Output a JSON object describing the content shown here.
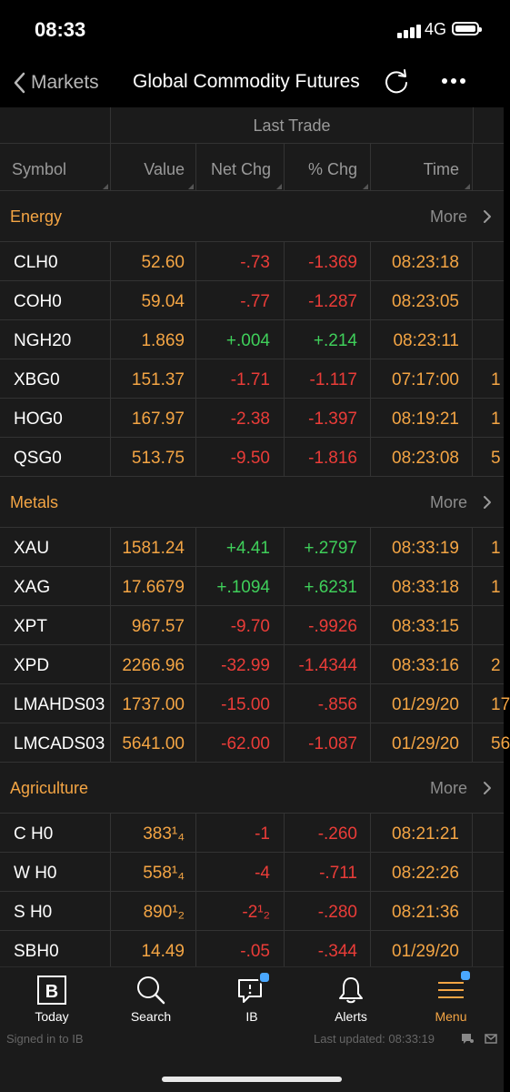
{
  "status": {
    "time": "08:33",
    "network": "4G"
  },
  "nav": {
    "back_label": "Markets",
    "title": "Global Commodity Futures",
    "icons": [
      "chevron-left-icon",
      "refresh-icon",
      "more-icon"
    ]
  },
  "table": {
    "group_header": "Last Trade",
    "columns": [
      "Symbol",
      "Value",
      "Net Chg",
      "% Chg",
      "Time"
    ]
  },
  "sections": [
    {
      "name": "Energy",
      "more": "More",
      "rows": [
        {
          "sym": "CLH0",
          "val": "52.60",
          "net": "-.73",
          "pct": "-1.369",
          "time": "08:23:18",
          "ext": "",
          "dir": "neg"
        },
        {
          "sym": "COH0",
          "val": "59.04",
          "net": "-.77",
          "pct": "-1.287",
          "time": "08:23:05",
          "ext": "",
          "dir": "neg"
        },
        {
          "sym": "NGH20",
          "val": "1.869",
          "net": "+.004",
          "pct": "+.214",
          "time": "08:23:11",
          "ext": "",
          "dir": "pos"
        },
        {
          "sym": "XBG0",
          "val": "151.37",
          "net": "-1.71",
          "pct": "-1.117",
          "time": "07:17:00",
          "ext": "1",
          "dir": "neg"
        },
        {
          "sym": "HOG0",
          "val": "167.97",
          "net": "-2.38",
          "pct": "-1.397",
          "time": "08:19:21",
          "ext": "1",
          "dir": "neg"
        },
        {
          "sym": "QSG0",
          "val": "513.75",
          "net": "-9.50",
          "pct": "-1.816",
          "time": "08:23:08",
          "ext": "5",
          "dir": "neg"
        }
      ]
    },
    {
      "name": "Metals",
      "more": "More",
      "rows": [
        {
          "sym": "XAU",
          "val": "1581.24",
          "net": "+4.41",
          "pct": "+.2797",
          "time": "08:33:19",
          "ext": "1",
          "dir": "pos"
        },
        {
          "sym": "XAG",
          "val": "17.6679",
          "net": "+.1094",
          "pct": "+.6231",
          "time": "08:33:18",
          "ext": "1",
          "dir": "pos"
        },
        {
          "sym": "XPT",
          "val": "967.57",
          "net": "-9.70",
          "pct": "-.9926",
          "time": "08:33:15",
          "ext": "",
          "dir": "neg"
        },
        {
          "sym": "XPD",
          "val": "2266.96",
          "net": "-32.99",
          "pct": "-1.4344",
          "time": "08:33:16",
          "ext": "2",
          "dir": "neg"
        },
        {
          "sym": "LMAHDS03",
          "val": "1737.00",
          "net": "-15.00",
          "pct": "-.856",
          "time": "01/29/20",
          "ext": "17",
          "dir": "neg"
        },
        {
          "sym": "LMCADS03",
          "val": "5641.00",
          "net": "-62.00",
          "pct": "-1.087",
          "time": "01/29/20",
          "ext": "56",
          "dir": "neg"
        }
      ]
    },
    {
      "name": "Agriculture",
      "more": "More",
      "rows": [
        {
          "sym": "C H0",
          "val": "383¹₄",
          "net": "-1",
          "pct": "-.260",
          "time": "08:21:21",
          "ext": "",
          "dir": "neg"
        },
        {
          "sym": "W H0",
          "val": "558¹₄",
          "net": "-4",
          "pct": "-.711",
          "time": "08:22:26",
          "ext": "",
          "dir": "neg"
        },
        {
          "sym": "S H0",
          "val": "890¹₂",
          "net": "-2¹₂",
          "pct": "-.280",
          "time": "08:21:36",
          "ext": "",
          "dir": "neg"
        },
        {
          "sym": "SBH0",
          "val": "14.49",
          "net": "-.05",
          "pct": "-.344",
          "time": "01/29/20",
          "ext": "",
          "dir": "neg"
        }
      ]
    }
  ],
  "tabs": [
    {
      "label": "Today",
      "icon": "bloomberg-b-icon",
      "active": false,
      "badge": false
    },
    {
      "label": "Search",
      "icon": "search-icon",
      "active": false,
      "badge": false
    },
    {
      "label": "IB",
      "icon": "chat-bubble-icon",
      "active": false,
      "badge": true
    },
    {
      "label": "Alerts",
      "icon": "bell-icon",
      "active": false,
      "badge": false
    },
    {
      "label": "Menu",
      "icon": "hamburger-menu-icon",
      "active": true,
      "badge": true
    }
  ],
  "footer": {
    "signed_in": "Signed in to IB",
    "last_updated": "Last updated: 08:33:19"
  },
  "colors": {
    "accent": "#f4a544",
    "negative": "#ea3c38",
    "positive": "#3fcf5a",
    "badge": "#4aa8ff"
  }
}
